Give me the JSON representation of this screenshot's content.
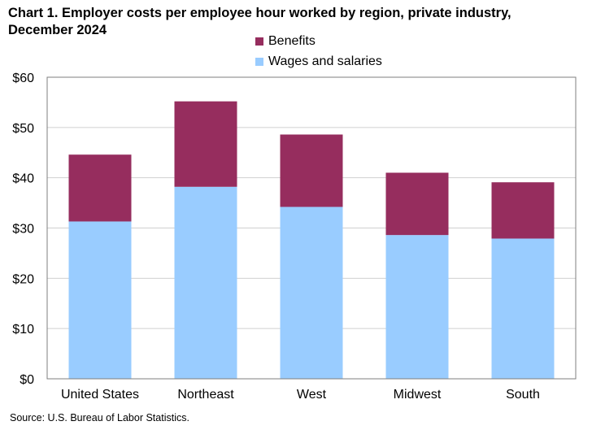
{
  "title": "Chart 1. Employer costs per employee hour worked by region, private industry, December 2024",
  "title_lines": [
    "Chart 1. Employer costs per employee hour worked by region, private industry,",
    "December 2024"
  ],
  "legend": [
    {
      "label": "Benefits",
      "color": "#962d5e"
    },
    {
      "label": "Wages and salaries",
      "color": "#99ccff"
    }
  ],
  "source": "Source: U.S. Bureau  of Labor Statistics.",
  "chart_data": {
    "type": "bar",
    "stacked": true,
    "title": "Chart 1. Employer costs per employee hour worked by region, private industry, December 2024",
    "xlabel": "",
    "ylabel": "",
    "categories": [
      "United States",
      "Northeast",
      "West",
      "Midwest",
      "South"
    ],
    "series": [
      {
        "name": "Wages and salaries",
        "color": "#99ccff",
        "values": [
          31.3,
          38.2,
          34.2,
          28.6,
          27.9
        ]
      },
      {
        "name": "Benefits",
        "color": "#962d5e",
        "values": [
          13.3,
          17.0,
          14.4,
          12.4,
          11.2
        ]
      }
    ],
    "ylim": [
      0,
      60
    ],
    "yticks": [
      0,
      10,
      20,
      30,
      40,
      50,
      60
    ],
    "ytick_labels": [
      "$0",
      "$10",
      "$20",
      "$30",
      "$40",
      "$50",
      "$60"
    ],
    "grid": true,
    "legend_position": "top-center"
  }
}
